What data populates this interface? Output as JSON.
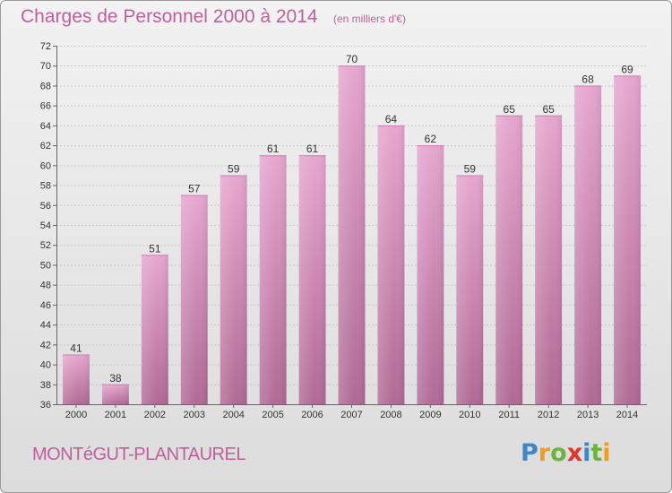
{
  "header": {
    "title": "Charges de Personnel 2000 à 2014",
    "subtitle": "(en milliers d'€)"
  },
  "footer": {
    "commune": "MONTéGUT-PLANTAUREL",
    "logo": "Proxiti"
  },
  "colors": {
    "bar_top": "#e6a6cf",
    "bar_bottom": "#b06a95",
    "title": "#c0609a"
  },
  "chart_data": {
    "type": "bar",
    "title": "Charges de Personnel 2000 à 2014",
    "subtitle": "(en milliers d'€)",
    "categories": [
      "2000",
      "2001",
      "2002",
      "2003",
      "2004",
      "2005",
      "2006",
      "2007",
      "2008",
      "2009",
      "2010",
      "2011",
      "2012",
      "2013",
      "2014"
    ],
    "values": [
      41,
      38,
      51,
      57,
      59,
      61,
      61,
      70,
      64,
      62,
      59,
      65,
      65,
      68,
      69
    ],
    "y_ticks": [
      36,
      38,
      40,
      42,
      44,
      46,
      48,
      50,
      52,
      54,
      56,
      58,
      60,
      62,
      64,
      66,
      68,
      70,
      72
    ],
    "ylim": [
      36,
      72
    ],
    "xlabel": "",
    "ylabel": "",
    "grid": true,
    "legend": "none"
  }
}
